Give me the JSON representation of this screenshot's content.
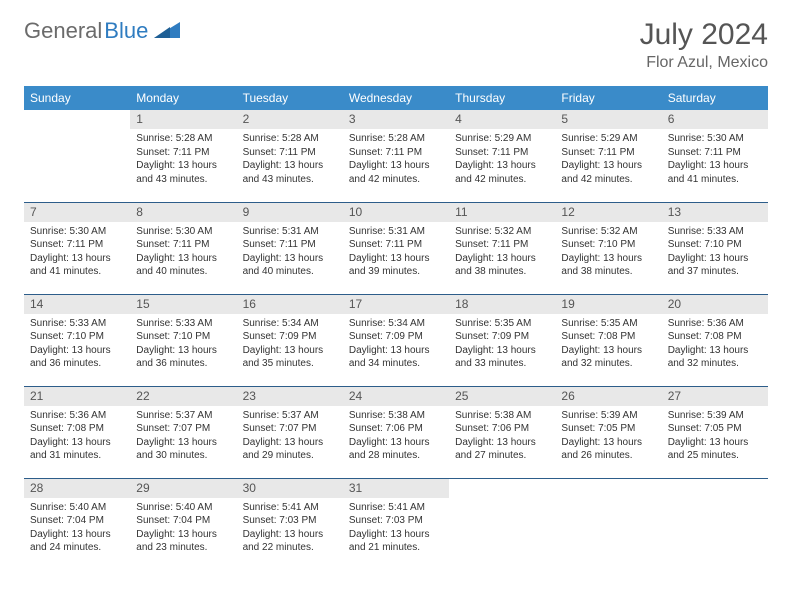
{
  "logo": {
    "text1": "General",
    "text2": "Blue"
  },
  "header": {
    "title": "July 2024",
    "location": "Flor Azul, Mexico"
  },
  "colors": {
    "header_bg": "#3a8bc9",
    "header_fg": "#ffffff",
    "daynum_bg": "#e8e8e8",
    "rule": "#2d5d8a",
    "logo_gray": "#6b6b6b",
    "logo_blue": "#2f7cc0"
  },
  "calendar": {
    "type": "table",
    "columns": [
      "Sunday",
      "Monday",
      "Tuesday",
      "Wednesday",
      "Thursday",
      "Friday",
      "Saturday"
    ],
    "firstDayOffset": 1,
    "days": [
      {
        "n": 1,
        "sunrise": "5:28 AM",
        "sunset": "7:11 PM",
        "daylight": "13 hours and 43 minutes."
      },
      {
        "n": 2,
        "sunrise": "5:28 AM",
        "sunset": "7:11 PM",
        "daylight": "13 hours and 43 minutes."
      },
      {
        "n": 3,
        "sunrise": "5:28 AM",
        "sunset": "7:11 PM",
        "daylight": "13 hours and 42 minutes."
      },
      {
        "n": 4,
        "sunrise": "5:29 AM",
        "sunset": "7:11 PM",
        "daylight": "13 hours and 42 minutes."
      },
      {
        "n": 5,
        "sunrise": "5:29 AM",
        "sunset": "7:11 PM",
        "daylight": "13 hours and 42 minutes."
      },
      {
        "n": 6,
        "sunrise": "5:30 AM",
        "sunset": "7:11 PM",
        "daylight": "13 hours and 41 minutes."
      },
      {
        "n": 7,
        "sunrise": "5:30 AM",
        "sunset": "7:11 PM",
        "daylight": "13 hours and 41 minutes."
      },
      {
        "n": 8,
        "sunrise": "5:30 AM",
        "sunset": "7:11 PM",
        "daylight": "13 hours and 40 minutes."
      },
      {
        "n": 9,
        "sunrise": "5:31 AM",
        "sunset": "7:11 PM",
        "daylight": "13 hours and 40 minutes."
      },
      {
        "n": 10,
        "sunrise": "5:31 AM",
        "sunset": "7:11 PM",
        "daylight": "13 hours and 39 minutes."
      },
      {
        "n": 11,
        "sunrise": "5:32 AM",
        "sunset": "7:11 PM",
        "daylight": "13 hours and 38 minutes."
      },
      {
        "n": 12,
        "sunrise": "5:32 AM",
        "sunset": "7:10 PM",
        "daylight": "13 hours and 38 minutes."
      },
      {
        "n": 13,
        "sunrise": "5:33 AM",
        "sunset": "7:10 PM",
        "daylight": "13 hours and 37 minutes."
      },
      {
        "n": 14,
        "sunrise": "5:33 AM",
        "sunset": "7:10 PM",
        "daylight": "13 hours and 36 minutes."
      },
      {
        "n": 15,
        "sunrise": "5:33 AM",
        "sunset": "7:10 PM",
        "daylight": "13 hours and 36 minutes."
      },
      {
        "n": 16,
        "sunrise": "5:34 AM",
        "sunset": "7:09 PM",
        "daylight": "13 hours and 35 minutes."
      },
      {
        "n": 17,
        "sunrise": "5:34 AM",
        "sunset": "7:09 PM",
        "daylight": "13 hours and 34 minutes."
      },
      {
        "n": 18,
        "sunrise": "5:35 AM",
        "sunset": "7:09 PM",
        "daylight": "13 hours and 33 minutes."
      },
      {
        "n": 19,
        "sunrise": "5:35 AM",
        "sunset": "7:08 PM",
        "daylight": "13 hours and 32 minutes."
      },
      {
        "n": 20,
        "sunrise": "5:36 AM",
        "sunset": "7:08 PM",
        "daylight": "13 hours and 32 minutes."
      },
      {
        "n": 21,
        "sunrise": "5:36 AM",
        "sunset": "7:08 PM",
        "daylight": "13 hours and 31 minutes."
      },
      {
        "n": 22,
        "sunrise": "5:37 AM",
        "sunset": "7:07 PM",
        "daylight": "13 hours and 30 minutes."
      },
      {
        "n": 23,
        "sunrise": "5:37 AM",
        "sunset": "7:07 PM",
        "daylight": "13 hours and 29 minutes."
      },
      {
        "n": 24,
        "sunrise": "5:38 AM",
        "sunset": "7:06 PM",
        "daylight": "13 hours and 28 minutes."
      },
      {
        "n": 25,
        "sunrise": "5:38 AM",
        "sunset": "7:06 PM",
        "daylight": "13 hours and 27 minutes."
      },
      {
        "n": 26,
        "sunrise": "5:39 AM",
        "sunset": "7:05 PM",
        "daylight": "13 hours and 26 minutes."
      },
      {
        "n": 27,
        "sunrise": "5:39 AM",
        "sunset": "7:05 PM",
        "daylight": "13 hours and 25 minutes."
      },
      {
        "n": 28,
        "sunrise": "5:40 AM",
        "sunset": "7:04 PM",
        "daylight": "13 hours and 24 minutes."
      },
      {
        "n": 29,
        "sunrise": "5:40 AM",
        "sunset": "7:04 PM",
        "daylight": "13 hours and 23 minutes."
      },
      {
        "n": 30,
        "sunrise": "5:41 AM",
        "sunset": "7:03 PM",
        "daylight": "13 hours and 22 minutes."
      },
      {
        "n": 31,
        "sunrise": "5:41 AM",
        "sunset": "7:03 PM",
        "daylight": "13 hours and 21 minutes."
      }
    ],
    "labels": {
      "sunrise": "Sunrise: ",
      "sunset": "Sunset: ",
      "daylight": "Daylight: "
    }
  }
}
